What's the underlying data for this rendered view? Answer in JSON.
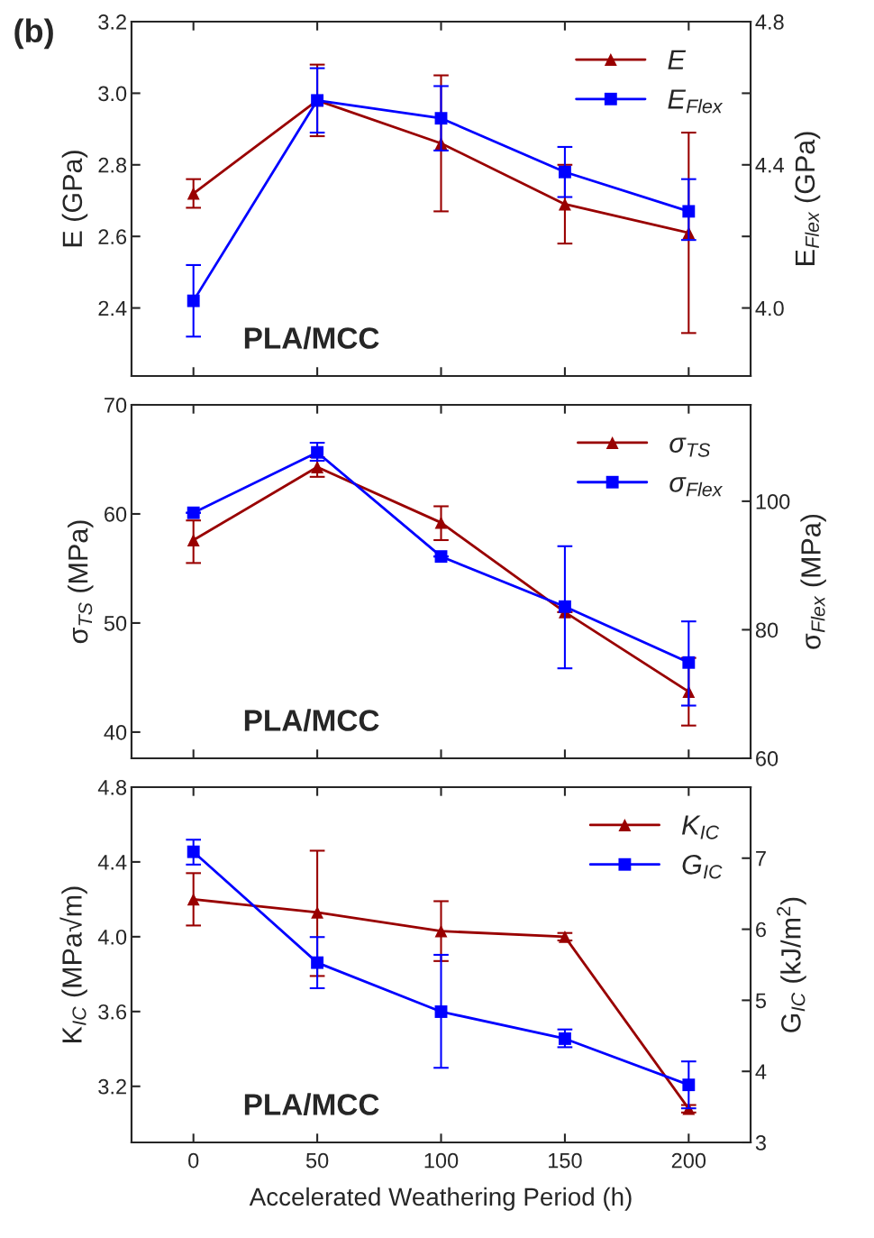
{
  "chart_data": [
    {
      "type": "line",
      "title": "(b)",
      "ylabel": "E (GPa)",
      "y2label": "E$_{Flex}$ (GPa)",
      "x": [
        0,
        50,
        100,
        150,
        200
      ],
      "xlim": [
        -25,
        225
      ],
      "xticks": [
        0,
        50,
        100,
        150,
        200
      ],
      "ylim": [
        2.21,
        3.2
      ],
      "yticks": [
        2.4,
        2.6,
        2.8,
        {
          "value": 3.0,
          "label": "3.0"
        },
        3.2
      ],
      "y2lim": [
        3.81,
        4.8
      ],
      "y2ticks": [
        {
          "value": 4.0,
          "label": "4.0"
        },
        {
          "value": 4.2,
          "label": null
        },
        4.4,
        {
          "value": 4.6,
          "label": null
        },
        4.8
      ],
      "tick_labels": "y",
      "legend": "top right",
      "grid": false,
      "annotations": [
        "PLA/MCC"
      ],
      "series": [
        {
          "name": "E",
          "color": "#990000",
          "marker": "triangle",
          "values": [
            2.72,
            2.98,
            2.86,
            2.69,
            2.61
          ],
          "errors": [
            [
              2.68,
              2.76
            ],
            [
              2.88,
              3.08
            ],
            [
              2.67,
              3.05
            ],
            [
              2.58,
              2.8
            ],
            [
              2.33,
              2.89
            ]
          ]
        },
        {
          "name": "E$_{Flex}$",
          "color": "#0000ff",
          "marker": "square",
          "axis": "y2",
          "values": [
            4.02,
            4.58,
            4.53,
            4.38,
            4.27
          ],
          "errors": [
            [
              3.92,
              4.12
            ],
            [
              4.49,
              4.67
            ],
            [
              4.44,
              4.62
            ],
            [
              4.31,
              4.45
            ],
            [
              4.19,
              4.36
            ]
          ]
        }
      ]
    },
    {
      "type": "line",
      "ylabel": "σ$_{TS}$ (MPa)",
      "y2label": "σ$_{Flex}$ (MPa)",
      "x": [
        0,
        50,
        100,
        150,
        200
      ],
      "xlim": [
        -25,
        225
      ],
      "xticks": [
        0,
        50,
        100,
        150,
        200
      ],
      "ylim": [
        37.6,
        70
      ],
      "yticks": [
        40,
        50,
        60,
        70
      ],
      "y2lim": [
        60,
        115
      ],
      "y2ticks": [
        60,
        80,
        100
      ],
      "tick_labels": "y",
      "legend": "top right",
      "grid": false,
      "annotations": [
        "PLA/MCC"
      ],
      "series": [
        {
          "name": "σ$_{TS}$",
          "color": "#990000",
          "marker": "triangle",
          "values": [
            57.6,
            64.3,
            59.2,
            51.0,
            43.7
          ],
          "errors": [
            [
              55.5,
              59.4
            ],
            [
              63.4,
              65.2
            ],
            [
              57.6,
              60.7
            ],
            null,
            [
              40.6,
              46.8
            ]
          ]
        },
        {
          "name": "σ$_{Flex}$",
          "color": "#0000ff",
          "marker": "square",
          "axis": "y2",
          "values": [
            98.2,
            107.6,
            91.4,
            83.6,
            74.9
          ],
          "errors": [
            null,
            [
              106.3,
              109.1
            ],
            null,
            [
              74.0,
              93.0
            ],
            [
              68.2,
              81.3
            ]
          ]
        }
      ]
    },
    {
      "type": "line",
      "xlabel": "Accelerated Weathering Period (h)",
      "ylabel": "K$_{IC}$ (MPa√m)",
      "y2label": "G$_{IC}$ (kJ/m$^{2}$)",
      "x": [
        0,
        50,
        100,
        150,
        200
      ],
      "xlim": [
        -25,
        225
      ],
      "xticks": [
        0,
        50,
        100,
        150,
        200
      ],
      "ylim": [
        2.9,
        4.8
      ],
      "yticks": [
        3.2,
        3.6,
        {
          "value": 4.0,
          "label": "4.0"
        },
        4.4,
        4.8
      ],
      "y2lim": [
        3,
        8
      ],
      "y2ticks": [
        3,
        4,
        5,
        6,
        7
      ],
      "legend": "top right",
      "grid": false,
      "annotations": [
        "PLA/MCC"
      ],
      "series": [
        {
          "name": "K$_{IC}$",
          "color": "#990000",
          "marker": "triangle",
          "values": [
            4.2,
            4.13,
            4.03,
            4.0,
            3.08
          ],
          "errors": [
            [
              4.06,
              4.34
            ],
            [
              3.79,
              4.46
            ],
            [
              3.87,
              4.19
            ],
            [
              3.98,
              4.02
            ],
            [
              3.06,
              3.1
            ]
          ]
        },
        {
          "name": "G$_{IC}$",
          "color": "#0000ff",
          "marker": "square",
          "axis": "y2",
          "values": [
            7.09,
            5.53,
            4.84,
            4.46,
            3.81
          ],
          "errors": [
            [
              6.91,
              7.26
            ],
            [
              5.17,
              5.89
            ],
            [
              4.05,
              5.64
            ],
            [
              4.34,
              4.59
            ],
            [
              3.48,
              4.14
            ]
          ]
        }
      ]
    }
  ]
}
